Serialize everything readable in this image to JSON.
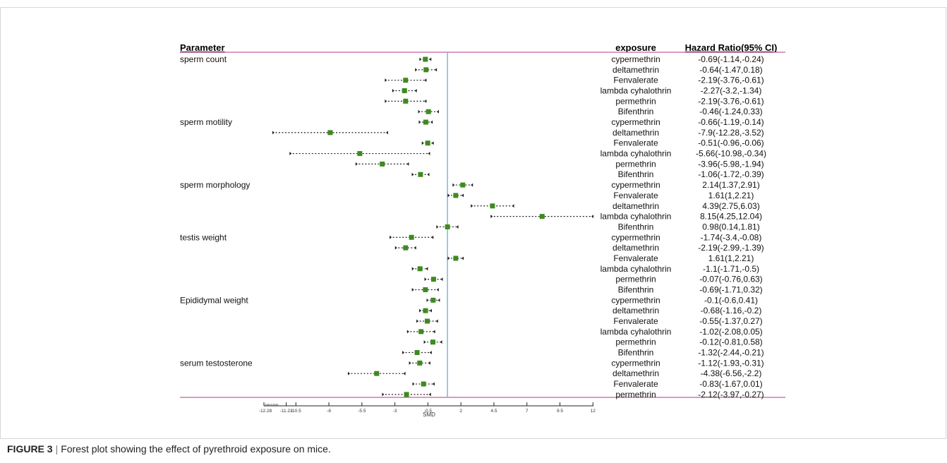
{
  "caption": {
    "label": "FIGURE 3",
    "separator": "|",
    "text": "Forest plot showing the effect of pyrethroid exposure on mice."
  },
  "chart_data": {
    "type": "forest",
    "header": {
      "parameter": "Parameter",
      "exposure": "exposure",
      "ratio": "Hazard Ratio(95% CI)"
    },
    "xlabel": "SMD",
    "x_ticks": [
      "-12.28",
      "-11.23",
      "-10.5",
      "-8",
      "-5.5",
      "-3",
      "-0.5",
      "2",
      "4.5",
      "7",
      "9.5",
      "12"
    ],
    "reference_line": 0.98,
    "xlim": [
      -12.28,
      12.04
    ],
    "colors": {
      "marker": "#3f8a1f",
      "reference": "#7ab8d8",
      "rule": "#b03a8a"
    },
    "groups": [
      {
        "parameter": "sperm count",
        "rows": [
          {
            "exposure": "cypermethrin",
            "est": -0.69,
            "lo": -1.14,
            "hi": -0.24,
            "ci": "-0.69(-1.14,-0.24)"
          },
          {
            "exposure": "deltamethrin",
            "est": -0.64,
            "lo": -1.47,
            "hi": 0.18,
            "ci": "-0.64(-1.47,0.18)"
          },
          {
            "exposure": "Fenvalerate",
            "est": -2.19,
            "lo": -3.76,
            "hi": -0.61,
            "ci": "-2.19(-3.76,-0.61)"
          },
          {
            "exposure": "lambda cyhalothrin",
            "est": -2.27,
            "lo": -3.2,
            "hi": -1.34,
            "ci": "-2.27(-3.2,-1.34)"
          },
          {
            "exposure": "permethrin",
            "est": -2.19,
            "lo": -3.76,
            "hi": -0.61,
            "ci": "-2.19(-3.76,-0.61)"
          },
          {
            "exposure": "Bifenthrin",
            "est": -0.46,
            "lo": -1.24,
            "hi": 0.33,
            "ci": "-0.46(-1.24,0.33)"
          }
        ]
      },
      {
        "parameter": "sperm motility",
        "rows": [
          {
            "exposure": "cypermethrin",
            "est": -0.66,
            "lo": -1.19,
            "hi": -0.14,
            "ci": "-0.66(-1.19,-0.14)"
          },
          {
            "exposure": "deltamethrin",
            "est": -7.9,
            "lo": -12.28,
            "hi": -3.52,
            "ci": "-7.9(-12.28,-3.52)"
          },
          {
            "exposure": "Fenvalerate",
            "est": -0.51,
            "lo": -0.96,
            "hi": -0.06,
            "ci": "-0.51(-0.96,-0.06)"
          },
          {
            "exposure": "lambda cyhalothrin",
            "est": -5.66,
            "lo": -10.98,
            "hi": -0.34,
            "ci": "-5.66(-10.98,-0.34)"
          },
          {
            "exposure": "permethrin",
            "est": -3.96,
            "lo": -5.98,
            "hi": -1.94,
            "ci": "-3.96(-5.98,-1.94)"
          },
          {
            "exposure": "Bifenthrin",
            "est": -1.06,
            "lo": -1.72,
            "hi": -0.39,
            "ci": "-1.06(-1.72,-0.39)"
          }
        ]
      },
      {
        "parameter": "sperm morphology",
        "rows": [
          {
            "exposure": "cypermethrin",
            "est": 2.14,
            "lo": 1.37,
            "hi": 2.91,
            "ci": "2.14(1.37,2.91)"
          },
          {
            "exposure": "Fenvalerate",
            "est": 1.61,
            "lo": 1,
            "hi": 2.21,
            "ci": "1.61(1,2.21)"
          },
          {
            "exposure": "deltamethrin",
            "est": 4.39,
            "lo": 2.75,
            "hi": 6.03,
            "ci": "4.39(2.75,6.03)"
          },
          {
            "exposure": "lambda cyhalothrin",
            "est": 8.15,
            "lo": 4.25,
            "hi": 12.04,
            "ci": "8.15(4.25,12.04)"
          },
          {
            "exposure": "Bifenthrin",
            "est": 0.98,
            "lo": 0.14,
            "hi": 1.81,
            "ci": "0.98(0.14,1.81)"
          }
        ]
      },
      {
        "parameter": "testis weight",
        "rows": [
          {
            "exposure": "cypermethrin",
            "est": -1.74,
            "lo": -3.4,
            "hi": -0.08,
            "ci": "-1.74(-3.4,-0.08)"
          },
          {
            "exposure": "deltamethrin",
            "est": -2.19,
            "lo": -2.99,
            "hi": -1.39,
            "ci": "-2.19(-2.99,-1.39)"
          },
          {
            "exposure": "Fenvalerate",
            "est": 1.61,
            "lo": 1,
            "hi": 2.21,
            "ci": "1.61(1,2.21)"
          },
          {
            "exposure": "lambda cyhalothrin",
            "est": -1.1,
            "lo": -1.71,
            "hi": -0.5,
            "ci": "-1.1(-1.71,-0.5)"
          },
          {
            "exposure": "permethrin",
            "est": -0.07,
            "lo": -0.76,
            "hi": 0.63,
            "ci": "-0.07(-0.76,0.63)"
          },
          {
            "exposure": "Bifenthrin",
            "est": -0.69,
            "lo": -1.71,
            "hi": 0.32,
            "ci": "-0.69(-1.71,0.32)"
          }
        ]
      },
      {
        "parameter": "Epididymal weight",
        "rows": [
          {
            "exposure": "cypermethrin",
            "est": -0.1,
            "lo": -0.6,
            "hi": 0.41,
            "ci": "-0.1(-0.6,0.41)"
          },
          {
            "exposure": "deltamethrin",
            "est": -0.68,
            "lo": -1.16,
            "hi": -0.2,
            "ci": "-0.68(-1.16,-0.2)"
          },
          {
            "exposure": "Fenvalerate",
            "est": -0.55,
            "lo": -1.37,
            "hi": 0.27,
            "ci": "-0.55(-1.37,0.27)"
          },
          {
            "exposure": "lambda cyhalothrin",
            "est": -1.02,
            "lo": -2.08,
            "hi": 0.05,
            "ci": "-1.02(-2.08,0.05)"
          },
          {
            "exposure": "permethrin",
            "est": -0.12,
            "lo": -0.81,
            "hi": 0.58,
            "ci": "-0.12(-0.81,0.58)"
          },
          {
            "exposure": "Bifenthrin",
            "est": -1.32,
            "lo": -2.44,
            "hi": -0.21,
            "ci": "-1.32(-2.44,-0.21)"
          }
        ]
      },
      {
        "parameter": "serum testosterone",
        "rows": [
          {
            "exposure": "cypermethrin",
            "est": -1.12,
            "lo": -1.93,
            "hi": -0.31,
            "ci": "-1.12(-1.93,-0.31)"
          },
          {
            "exposure": "deltamethrin",
            "est": -4.38,
            "lo": -6.56,
            "hi": -2.2,
            "ci": "-4.38(-6.56,-2.2)"
          },
          {
            "exposure": "Fenvalerate",
            "est": -0.83,
            "lo": -1.67,
            "hi": 0.01,
            "ci": "-0.83(-1.67,0.01)"
          },
          {
            "exposure": "permethrin",
            "est": -2.12,
            "lo": -3.97,
            "hi": -0.27,
            "ci": "-2.12(-3.97,-0.27)"
          }
        ]
      }
    ]
  }
}
